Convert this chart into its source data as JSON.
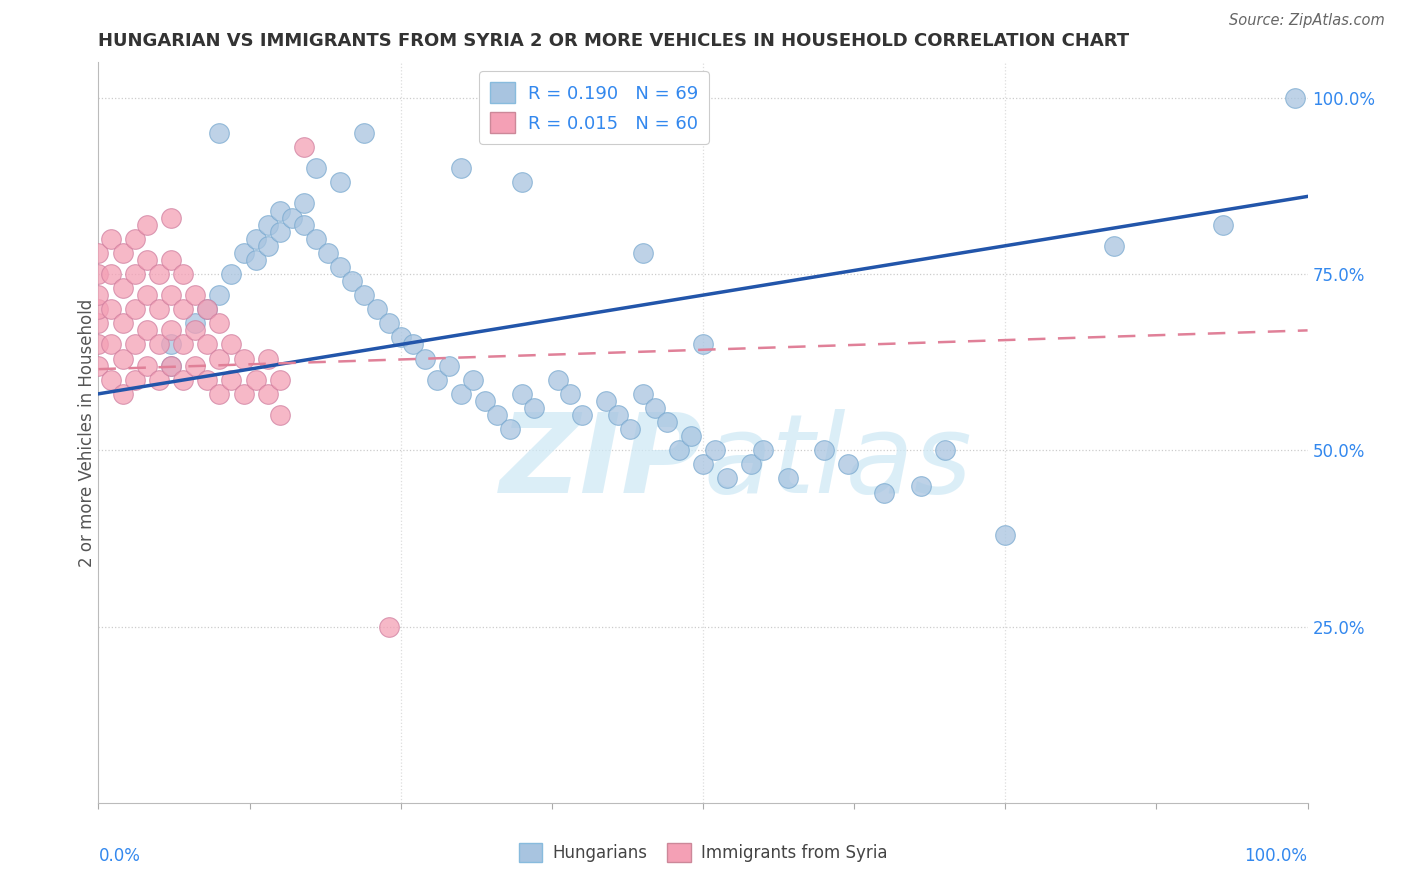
{
  "title": "HUNGARIAN VS IMMIGRANTS FROM SYRIA 2 OR MORE VEHICLES IN HOUSEHOLD CORRELATION CHART",
  "source": "Source: ZipAtlas.com",
  "ylabel": "2 or more Vehicles in Household",
  "legend_blue_r": "R = 0.190",
  "legend_blue_n": "N = 69",
  "legend_pink_r": "R = 0.015",
  "legend_pink_n": "N = 60",
  "blue_color": "#a8c4e0",
  "pink_color": "#f4a0b5",
  "blue_line_color": "#2255aa",
  "pink_line_color": "#e08098",
  "watermark_color": "#cde8f5",
  "blue_x": [
    0.06,
    0.06,
    0.08,
    0.09,
    0.1,
    0.11,
    0.12,
    0.13,
    0.13,
    0.14,
    0.14,
    0.15,
    0.15,
    0.16,
    0.17,
    0.17,
    0.18,
    0.19,
    0.2,
    0.21,
    0.22,
    0.23,
    0.24,
    0.25,
    0.26,
    0.27,
    0.28,
    0.29,
    0.3,
    0.31,
    0.32,
    0.33,
    0.34,
    0.35,
    0.36,
    0.38,
    0.39,
    0.4,
    0.42,
    0.43,
    0.44,
    0.45,
    0.46,
    0.47,
    0.48,
    0.49,
    0.5,
    0.51,
    0.52,
    0.54,
    0.55,
    0.57,
    0.6,
    0.62,
    0.65,
    0.68,
    0.7,
    0.75,
    0.84,
    0.93,
    0.99,
    0.1,
    0.18,
    0.2,
    0.22,
    0.3,
    0.35,
    0.45,
    0.5
  ],
  "blue_y": [
    0.65,
    0.62,
    0.68,
    0.7,
    0.72,
    0.75,
    0.78,
    0.8,
    0.77,
    0.82,
    0.79,
    0.84,
    0.81,
    0.83,
    0.85,
    0.82,
    0.8,
    0.78,
    0.76,
    0.74,
    0.72,
    0.7,
    0.68,
    0.66,
    0.65,
    0.63,
    0.6,
    0.62,
    0.58,
    0.6,
    0.57,
    0.55,
    0.53,
    0.58,
    0.56,
    0.6,
    0.58,
    0.55,
    0.57,
    0.55,
    0.53,
    0.58,
    0.56,
    0.54,
    0.5,
    0.52,
    0.48,
    0.5,
    0.46,
    0.48,
    0.5,
    0.46,
    0.5,
    0.48,
    0.44,
    0.45,
    0.5,
    0.38,
    0.79,
    0.82,
    1.0,
    0.95,
    0.9,
    0.88,
    0.95,
    0.9,
    0.88,
    0.78,
    0.65
  ],
  "pink_x": [
    0.0,
    0.0,
    0.0,
    0.0,
    0.0,
    0.0,
    0.0,
    0.01,
    0.01,
    0.01,
    0.01,
    0.01,
    0.02,
    0.02,
    0.02,
    0.02,
    0.02,
    0.03,
    0.03,
    0.03,
    0.03,
    0.03,
    0.04,
    0.04,
    0.04,
    0.04,
    0.04,
    0.05,
    0.05,
    0.05,
    0.05,
    0.06,
    0.06,
    0.06,
    0.06,
    0.06,
    0.07,
    0.07,
    0.07,
    0.07,
    0.08,
    0.08,
    0.08,
    0.09,
    0.09,
    0.09,
    0.1,
    0.1,
    0.1,
    0.11,
    0.11,
    0.12,
    0.12,
    0.13,
    0.14,
    0.14,
    0.15,
    0.15,
    0.17,
    0.24
  ],
  "pink_y": [
    0.62,
    0.65,
    0.68,
    0.7,
    0.72,
    0.75,
    0.78,
    0.6,
    0.65,
    0.7,
    0.75,
    0.8,
    0.58,
    0.63,
    0.68,
    0.73,
    0.78,
    0.6,
    0.65,
    0.7,
    0.75,
    0.8,
    0.62,
    0.67,
    0.72,
    0.77,
    0.82,
    0.6,
    0.65,
    0.7,
    0.75,
    0.62,
    0.67,
    0.72,
    0.77,
    0.83,
    0.6,
    0.65,
    0.7,
    0.75,
    0.62,
    0.67,
    0.72,
    0.6,
    0.65,
    0.7,
    0.58,
    0.63,
    0.68,
    0.6,
    0.65,
    0.58,
    0.63,
    0.6,
    0.58,
    0.63,
    0.55,
    0.6,
    0.93,
    0.25
  ]
}
